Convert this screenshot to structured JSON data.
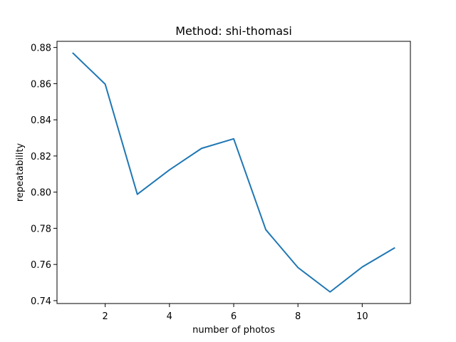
{
  "chart_data": {
    "type": "line",
    "title": "Method: shi-thomasi",
    "xlabel": "number of photos",
    "ylabel": "repeatability",
    "x": [
      1,
      2,
      3,
      4,
      5,
      6,
      7,
      8,
      9,
      10,
      11
    ],
    "series": [
      {
        "values": [
          0.8768,
          0.8597,
          0.7988,
          0.8123,
          0.8242,
          0.8295,
          0.7792,
          0.7583,
          0.7448,
          0.7586,
          0.7691
        ]
      }
    ],
    "xlim": [
      0.5,
      11.5
    ],
    "ylim": [
      0.7384,
      0.8834
    ],
    "xticks": [
      2,
      4,
      6,
      8,
      10
    ],
    "yticks": [
      0.74,
      0.76,
      0.78,
      0.8,
      0.82,
      0.84,
      0.86,
      0.88
    ],
    "xtick_labels": [
      "2",
      "4",
      "6",
      "8",
      "10"
    ],
    "ytick_labels": [
      "0.74",
      "0.76",
      "0.78",
      "0.80",
      "0.82",
      "0.84",
      "0.86",
      "0.88"
    ],
    "grid": false,
    "line_color": "#1f77b4"
  }
}
